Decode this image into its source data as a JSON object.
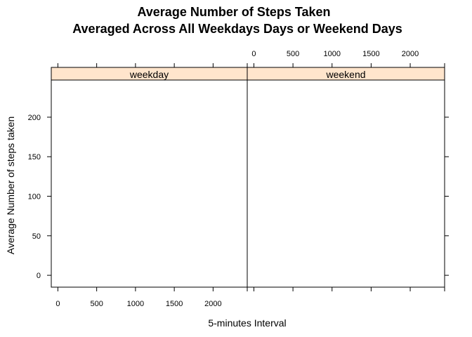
{
  "chart_data": {
    "type": "line",
    "title": "Average Number of Steps Taken",
    "subtitle": "Averaged Across All Weekdays Days or Weekend Days",
    "xlabel": "5-minutes Interval",
    "ylabel": "Average Number of steps taken",
    "xlim": [
      -85,
      2440
    ],
    "ylim": [
      -15,
      247
    ],
    "x_ticks": [
      0,
      500,
      1000,
      1500,
      2000
    ],
    "y_ticks": [
      0,
      50,
      100,
      150,
      200
    ],
    "grid": false,
    "legend": "none",
    "panels": [
      {
        "name": "weekday",
        "series": []
      },
      {
        "name": "weekend",
        "series": []
      }
    ],
    "strip_color": "#ffe5cc",
    "line_color": "#0080ff"
  }
}
